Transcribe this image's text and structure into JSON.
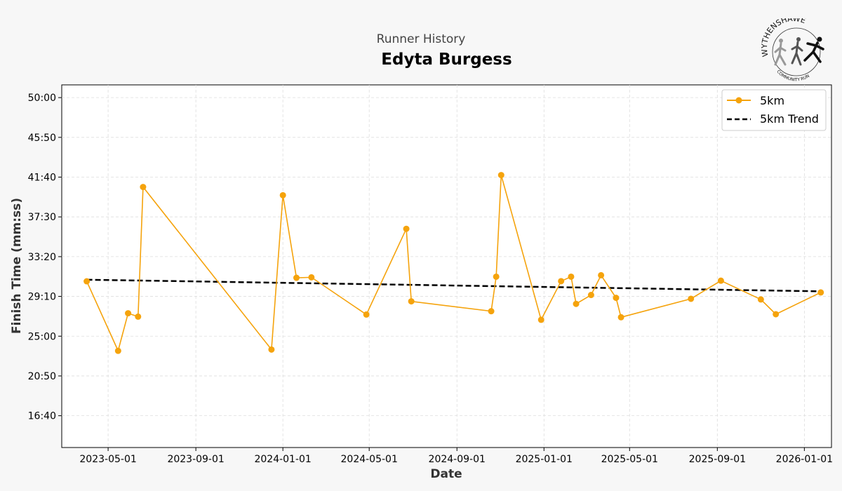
{
  "header": {
    "subtitle": "Runner History",
    "title": "Edyta Burgess"
  },
  "logo": {
    "top_text": "WYTHENSHAWE",
    "bottom_text": "COMMUNITY RUN"
  },
  "colors": {
    "series": "#f5a30c",
    "trend": "#000000",
    "plot_bg": "#ffffff",
    "page_bg": "#f7f7f7",
    "grid": "#dddddd"
  },
  "chart_data": {
    "type": "line",
    "title": "Edyta Burgess",
    "subtitle": "Runner History",
    "xlabel": "Date",
    "ylabel": "Finish Time (mm:ss)",
    "xlim": [
      "2023-02-25",
      "2026-02-08"
    ],
    "ylim_seconds": [
      800,
      3080
    ],
    "grid": true,
    "legend_position": "top-right",
    "x_ticks": [
      "2023-05-01",
      "2023-09-01",
      "2024-01-01",
      "2024-05-01",
      "2024-09-01",
      "2025-01-01",
      "2025-05-01",
      "2025-09-01",
      "2026-01-01"
    ],
    "y_ticks": [
      {
        "label": "16:40",
        "seconds": 1000
      },
      {
        "label": "20:50",
        "seconds": 1250
      },
      {
        "label": "25:00",
        "seconds": 1500
      },
      {
        "label": "29:10",
        "seconds": 1750
      },
      {
        "label": "33:20",
        "seconds": 2000
      },
      {
        "label": "37:30",
        "seconds": 2250
      },
      {
        "label": "41:40",
        "seconds": 2500
      },
      {
        "label": "45:50",
        "seconds": 2750
      },
      {
        "label": "50:00",
        "seconds": 3000
      }
    ],
    "series": [
      {
        "name": "5km",
        "style": "line-marker",
        "points": [
          {
            "date": "2023-04-01",
            "time": "30:45"
          },
          {
            "date": "2023-05-15",
            "time": "23:28"
          },
          {
            "date": "2023-05-29",
            "time": "27:24"
          },
          {
            "date": "2023-06-12",
            "time": "27:03"
          },
          {
            "date": "2023-06-19",
            "time": "40:38"
          },
          {
            "date": "2023-12-16",
            "time": "23:36"
          },
          {
            "date": "2024-01-01",
            "time": "39:46"
          },
          {
            "date": "2024-01-20",
            "time": "31:07"
          },
          {
            "date": "2024-02-10",
            "time": "31:10"
          },
          {
            "date": "2024-04-27",
            "time": "27:16"
          },
          {
            "date": "2024-06-22",
            "time": "36:15"
          },
          {
            "date": "2024-06-29",
            "time": "28:39"
          },
          {
            "date": "2024-10-19",
            "time": "27:37"
          },
          {
            "date": "2024-10-26",
            "time": "31:14"
          },
          {
            "date": "2024-11-02",
            "time": "41:53"
          },
          {
            "date": "2024-12-28",
            "time": "26:43"
          },
          {
            "date": "2025-01-25",
            "time": "30:46"
          },
          {
            "date": "2025-02-08",
            "time": "31:14"
          },
          {
            "date": "2025-02-15",
            "time": "28:23"
          },
          {
            "date": "2025-03-08",
            "time": "29:19"
          },
          {
            "date": "2025-03-22",
            "time": "31:23"
          },
          {
            "date": "2025-04-12",
            "time": "29:01"
          },
          {
            "date": "2025-04-19",
            "time": "26:59"
          },
          {
            "date": "2025-07-26",
            "time": "28:55"
          },
          {
            "date": "2025-09-06",
            "time": "30:49"
          },
          {
            "date": "2025-11-01",
            "time": "28:51"
          },
          {
            "date": "2025-11-22",
            "time": "27:18"
          },
          {
            "date": "2026-01-24",
            "time": "29:35"
          }
        ]
      },
      {
        "name": "5km Trend",
        "style": "dashed",
        "points": [
          {
            "date": "2023-04-01",
            "time": "30:55"
          },
          {
            "date": "2026-01-24",
            "time": "29:42"
          }
        ]
      }
    ]
  }
}
